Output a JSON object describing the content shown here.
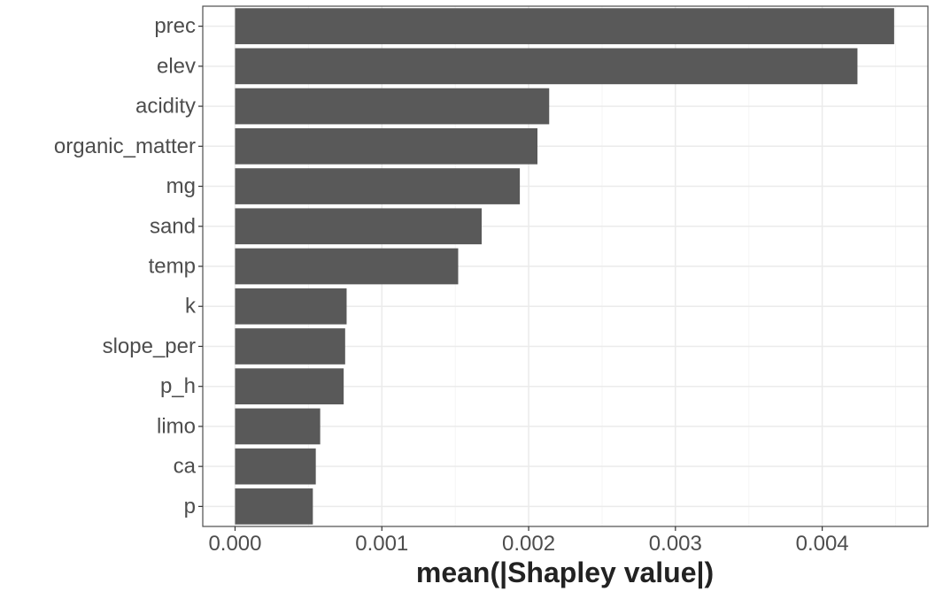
{
  "chart_data": {
    "type": "bar",
    "orientation": "horizontal",
    "title": "",
    "xlabel": "mean(|Shapley value|)",
    "ylabel": "",
    "categories": [
      "prec",
      "elev",
      "acidity",
      "organic_matter",
      "mg",
      "sand",
      "temp",
      "k",
      "slope_per",
      "p_h",
      "limo",
      "ca",
      "p"
    ],
    "values": [
      0.00449,
      0.00424,
      0.00214,
      0.00206,
      0.00194,
      0.00168,
      0.00152,
      0.00076,
      0.00075,
      0.00074,
      0.00058,
      0.00055,
      0.00053
    ],
    "xlim": [
      -0.00022,
      0.00472
    ],
    "xticks": [
      0,
      0.001,
      0.002,
      0.003,
      0.004
    ],
    "xtick_labels": [
      "0.000",
      "0.001",
      "0.002",
      "0.003",
      "0.004"
    ],
    "grid": true,
    "legend": "none",
    "bar_color": "#595959",
    "grid_major_color": "#ebebeb",
    "grid_minor_color": "#f5f5f5",
    "panel_border_color": "#4d4d4d"
  }
}
